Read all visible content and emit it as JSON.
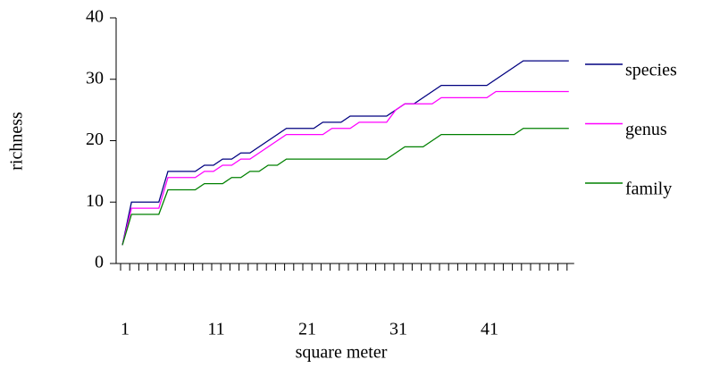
{
  "chart_data": {
    "type": "line",
    "xlabel": "square meter",
    "ylabel": "richness",
    "categories": [
      "1",
      null,
      null,
      null,
      null,
      null,
      null,
      null,
      null,
      null,
      "11",
      null,
      null,
      null,
      null,
      null,
      null,
      null,
      null,
      null,
      "21",
      null,
      null,
      null,
      null,
      null,
      null,
      null,
      null,
      null,
      "31",
      null,
      null,
      null,
      null,
      null,
      null,
      null,
      null,
      null,
      "41",
      null,
      null,
      null,
      null,
      null,
      null,
      null,
      null,
      null
    ],
    "series": [
      {
        "name": "species",
        "color": "#000080",
        "values": [
          3,
          10,
          10,
          10,
          10,
          15,
          15,
          15,
          15,
          16,
          16,
          17,
          17,
          18,
          18,
          19,
          20,
          21,
          22,
          22,
          22,
          22,
          23,
          23,
          23,
          24,
          24,
          24,
          24,
          24,
          25,
          26,
          26,
          27,
          28,
          29,
          29,
          29,
          29,
          29,
          29,
          30,
          31,
          32,
          33,
          33,
          33,
          33,
          33,
          33
        ]
      },
      {
        "name": "genus",
        "color": "#ff00ff",
        "values": [
          3,
          9,
          9,
          9,
          9,
          14,
          14,
          14,
          14,
          15,
          15,
          16,
          16,
          17,
          17,
          18,
          19,
          20,
          21,
          21,
          21,
          21,
          21,
          22,
          22,
          22,
          23,
          23,
          23,
          23,
          25,
          26,
          26,
          26,
          26,
          27,
          27,
          27,
          27,
          27,
          27,
          28,
          28,
          28,
          28,
          28,
          28,
          28,
          28,
          28
        ]
      },
      {
        "name": "family",
        "color": "#008000",
        "values": [
          3,
          8,
          8,
          8,
          8,
          12,
          12,
          12,
          12,
          13,
          13,
          13,
          14,
          14,
          15,
          15,
          16,
          16,
          17,
          17,
          17,
          17,
          17,
          17,
          17,
          17,
          17,
          17,
          17,
          17,
          18,
          19,
          19,
          19,
          20,
          21,
          21,
          21,
          21,
          21,
          21,
          21,
          21,
          21,
          22,
          22,
          22,
          22,
          22,
          22
        ]
      }
    ],
    "ylim": [
      0,
      40
    ],
    "yticks": [
      0,
      10,
      20,
      30,
      40
    ],
    "legend": "right"
  }
}
